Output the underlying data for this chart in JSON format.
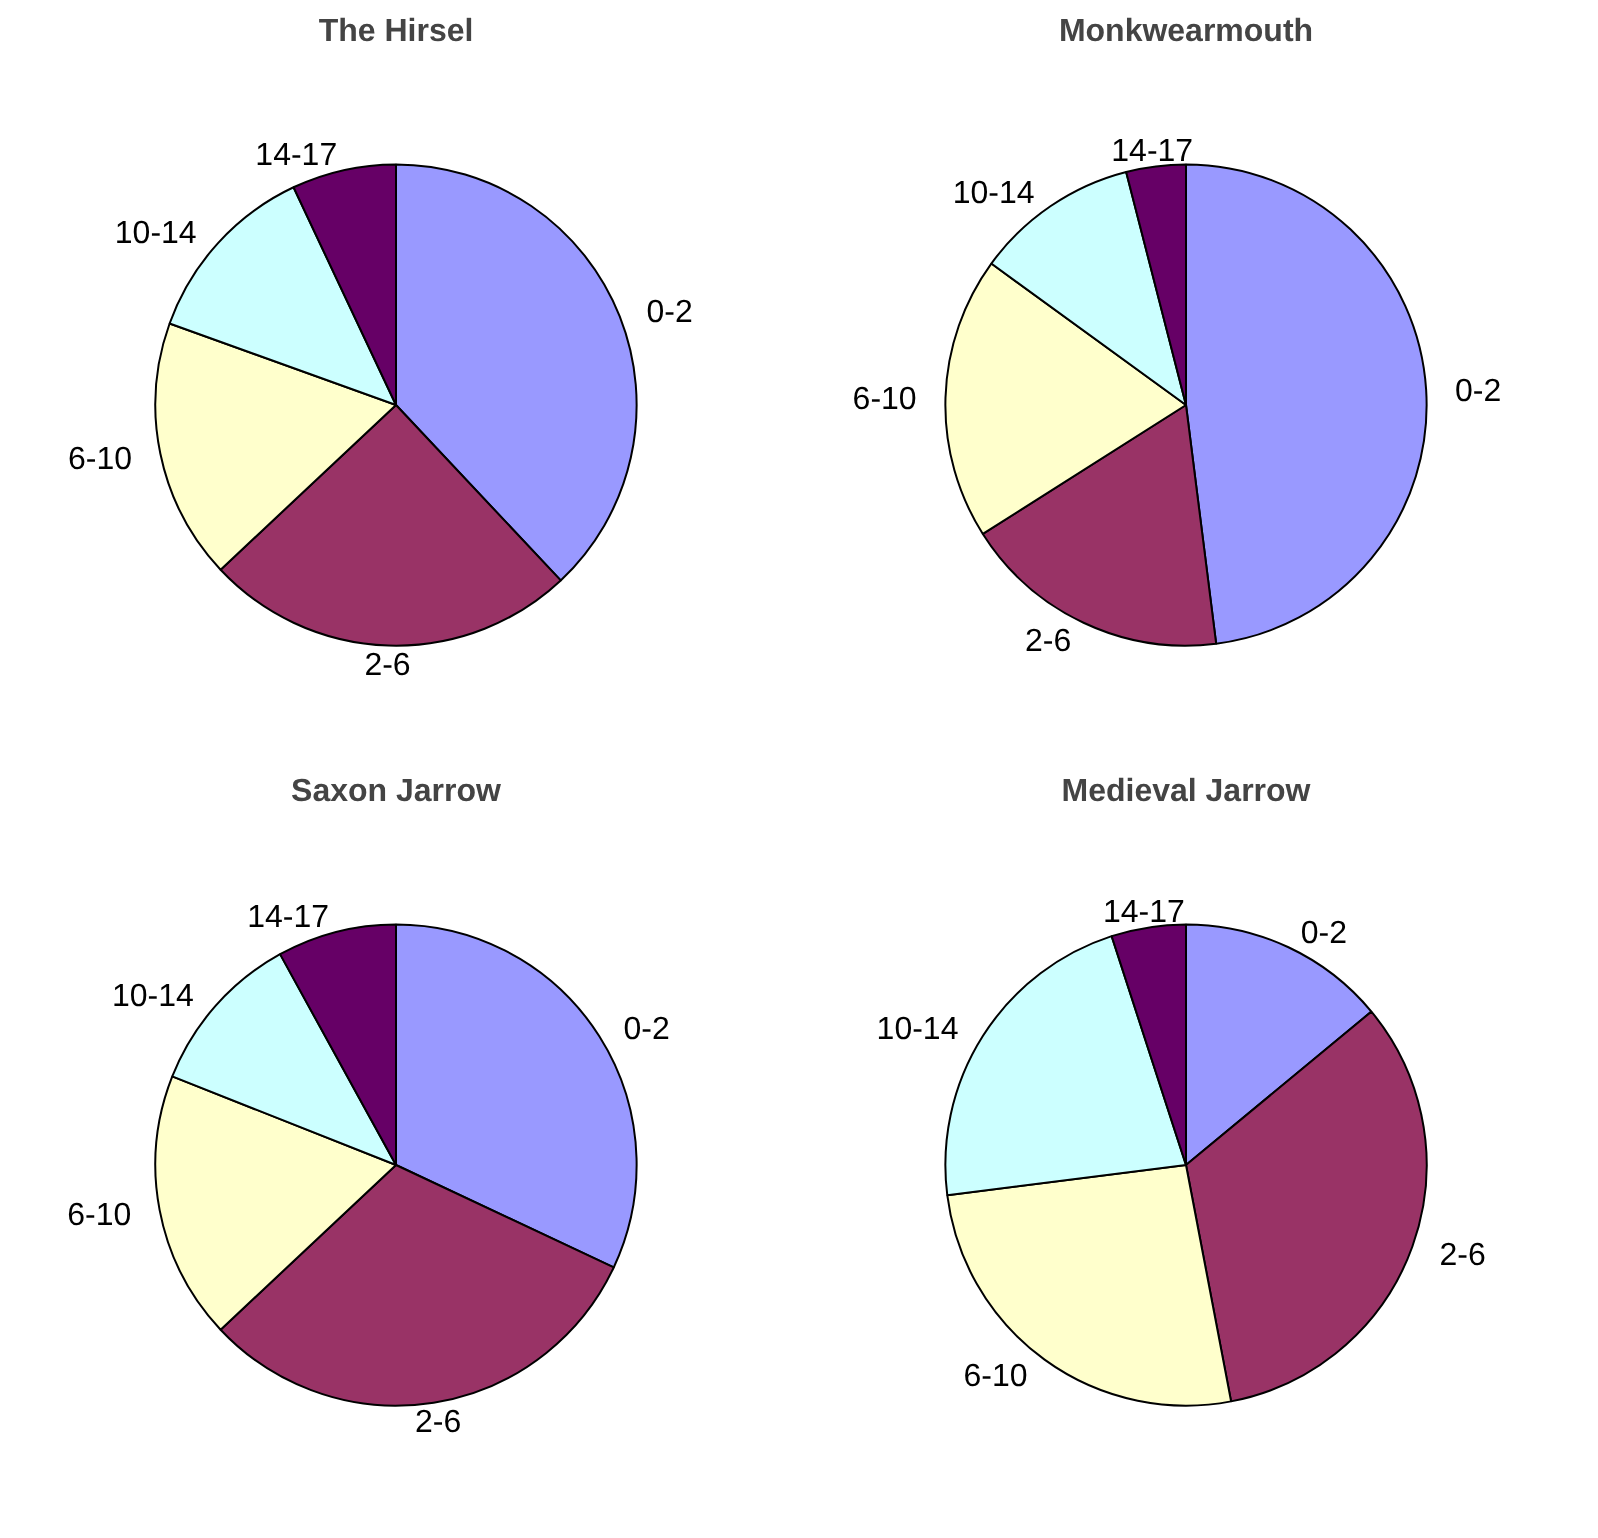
{
  "chart_data": [
    {
      "type": "pie",
      "title": "The Hirsel",
      "categories": [
        "0-2",
        "2-6",
        "6-10",
        "10-14",
        "14-17"
      ],
      "values": [
        38,
        25,
        17.5,
        12.5,
        7
      ],
      "colors": [
        "#9999ff",
        "#993366",
        "#ffffcc",
        "#ccffff",
        "#660066"
      ]
    },
    {
      "type": "pie",
      "title": "Monkwearmouth",
      "categories": [
        "0-2",
        "2-6",
        "6-10",
        "10-14",
        "14-17"
      ],
      "values": [
        48,
        18,
        19,
        11,
        4
      ],
      "colors": [
        "#9999ff",
        "#993366",
        "#ffffcc",
        "#ccffff",
        "#660066"
      ]
    },
    {
      "type": "pie",
      "title": "Saxon Jarrow",
      "categories": [
        "0-2",
        "2-6",
        "6-10",
        "10-14",
        "14-17"
      ],
      "values": [
        32,
        31,
        18,
        11,
        8
      ],
      "colors": [
        "#9999ff",
        "#993366",
        "#ffffcc",
        "#ccffff",
        "#660066"
      ]
    },
    {
      "type": "pie",
      "title": "Medieval Jarrow",
      "categories": [
        "0-2",
        "2-6",
        "6-10",
        "10-14",
        "14-17"
      ],
      "values": [
        14,
        33,
        26,
        22,
        5
      ],
      "colors": [
        "#9999ff",
        "#993366",
        "#ffffcc",
        "#ccffff",
        "#660066"
      ]
    }
  ]
}
